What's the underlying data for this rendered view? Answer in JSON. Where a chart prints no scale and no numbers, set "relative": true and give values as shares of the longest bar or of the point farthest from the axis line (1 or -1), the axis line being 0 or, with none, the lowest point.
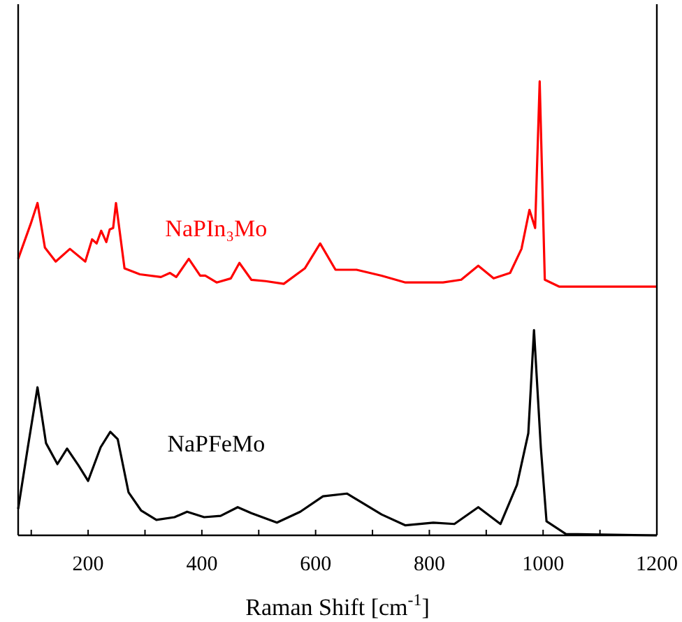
{
  "chart_data": {
    "type": "line",
    "xlabel": "Raman Shift [cm$^{-1}$]",
    "relative": true,
    "grid": false,
    "marker": "none",
    "line_style": "solid",
    "xlim": [
      77,
      1200
    ],
    "xticks": [
      {
        "value": 100,
        "label": null
      },
      200,
      {
        "value": 300,
        "label": null
      },
      400,
      {
        "value": 500,
        "label": null
      },
      600,
      {
        "value": 700,
        "label": null
      },
      800,
      {
        "value": 900,
        "label": null
      },
      1000,
      {
        "value": 1100,
        "label": null
      },
      1200
    ],
    "series": [
      {
        "name": "NaPIn₃Mo",
        "color": "#ff0000",
        "x": [
          77,
          99,
          111,
          124,
          143,
          168,
          195,
          207,
          215,
          223,
          232,
          238,
          244,
          249,
          264,
          291,
          328,
          344,
          355,
          377,
          397,
          406,
          426,
          451,
          466,
          487,
          512,
          544,
          581,
          608,
          635,
          672,
          716,
          758,
          824,
          856,
          886,
          913,
          942,
          962,
          976,
          986,
          994,
          1003,
          1028,
          1200
        ],
        "values": [
          0.609,
          0.686,
          0.732,
          0.634,
          0.603,
          0.631,
          0.603,
          0.652,
          0.643,
          0.671,
          0.646,
          0.674,
          0.677,
          0.732,
          0.588,
          0.575,
          0.569,
          0.578,
          0.569,
          0.609,
          0.572,
          0.572,
          0.557,
          0.566,
          0.6,
          0.563,
          0.56,
          0.554,
          0.588,
          0.643,
          0.585,
          0.585,
          0.572,
          0.557,
          0.557,
          0.563,
          0.594,
          0.566,
          0.578,
          0.631,
          0.717,
          0.677,
          1,
          0.563,
          0.548,
          0.548
        ]
      },
      {
        "name": "NaPFeMo",
        "color": "#000000",
        "x": [
          77,
          94,
          111,
          126,
          146,
          163,
          183,
          200,
          222,
          239,
          252,
          271,
          293,
          320,
          352,
          374,
          404,
          433,
          463,
          487,
          532,
          573,
          613,
          655,
          716,
          758,
          807,
          844,
          886,
          925,
          954,
          974,
          984,
          996,
          1006,
          1040,
          1200
        ],
        "values": [
          0.058,
          0.194,
          0.326,
          0.203,
          0.157,
          0.191,
          0.154,
          0.12,
          0.194,
          0.228,
          0.212,
          0.095,
          0.055,
          0.034,
          0.04,
          0.052,
          0.04,
          0.043,
          0.062,
          0.049,
          0.028,
          0.052,
          0.086,
          0.092,
          0.046,
          0.022,
          0.028,
          0.025,
          0.062,
          0.025,
          0.111,
          0.225,
          0.452,
          0.194,
          0.031,
          0.003,
          0
        ]
      }
    ]
  }
}
